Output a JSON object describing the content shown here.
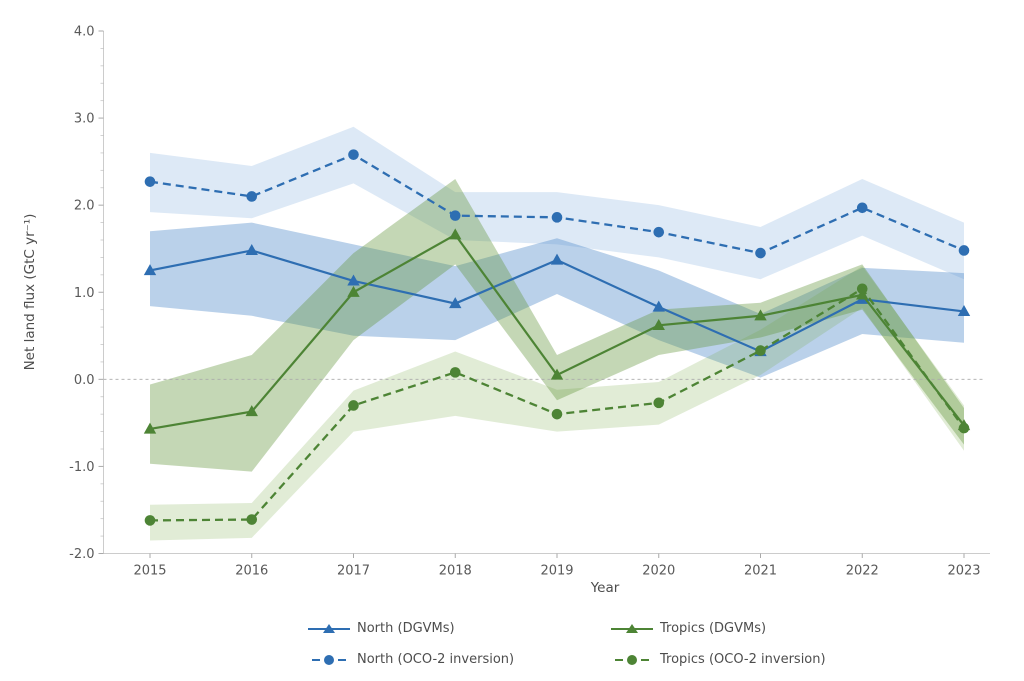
{
  "figure": {
    "background": "#ffffff"
  },
  "chart_data": {
    "type": "line",
    "title": "",
    "xlabel": "Year",
    "ylabel": "Net land flux (GtC yr⁻¹)",
    "x": [
      2015,
      2016,
      2017,
      2018,
      2019,
      2020,
      2021,
      2022,
      2023
    ],
    "xtick_labels": [
      "2015",
      "2016",
      "2017",
      "2018",
      "2019",
      "2020",
      "2021",
      "2022",
      "2023"
    ],
    "ylim": [
      -2.0,
      4.0
    ],
    "ytick_values": [
      4.0,
      3.0,
      2.0,
      1.0,
      0.0,
      -1.0,
      -2.0
    ],
    "ytick_labels": [
      "4.0",
      "3.0",
      "2.0",
      "1.0",
      "0.0",
      "-1.0",
      "-2.0"
    ],
    "y_minor_tick_step": 0.2,
    "grid": false,
    "zero_line": true,
    "legend_position": "bottom",
    "colors": {
      "axis": "#cccccc",
      "tick": "#a9a9a9",
      "tick_label": "#595959",
      "axis_label": "#4d4d4d",
      "zero_line": "#aaaaaa",
      "legend_text": "#4d4d4d",
      "north": "#2e6eb2",
      "tropics": "#4d8435"
    },
    "series": [
      {
        "name": "North (DGVMs)",
        "color": "#2e6eb2",
        "line_style": "solid",
        "marker": "triangle",
        "values": [
          1.25,
          1.48,
          1.13,
          0.87,
          1.37,
          0.83,
          0.32,
          0.92,
          0.78
        ],
        "band": {
          "upper": [
            1.7,
            1.8,
            1.55,
            1.3,
            1.62,
            1.25,
            0.75,
            1.28,
            1.22
          ],
          "lower": [
            0.84,
            0.73,
            0.5,
            0.45,
            0.98,
            0.45,
            0.02,
            0.52,
            0.42
          ],
          "color": "rgba(90,145,205,0.42)"
        }
      },
      {
        "name": "North (OCO-2 inversion)",
        "color": "#2e6eb2",
        "line_style": "dashed",
        "marker": "circle",
        "values": [
          2.27,
          2.1,
          2.58,
          1.88,
          1.86,
          1.69,
          1.45,
          1.97,
          1.48
        ],
        "band": {
          "upper": [
            2.6,
            2.45,
            2.9,
            2.15,
            2.15,
            2.0,
            1.75,
            2.3,
            1.8
          ],
          "lower": [
            1.92,
            1.85,
            2.25,
            1.6,
            1.55,
            1.4,
            1.15,
            1.65,
            1.15
          ],
          "color": "rgba(100,155,215,0.22)"
        }
      },
      {
        "name": "Tropics (DGVMs)",
        "color": "#4d8435",
        "line_style": "solid",
        "marker": "triangle",
        "values": [
          -0.57,
          -0.37,
          1.0,
          1.66,
          0.05,
          0.62,
          0.73,
          0.97,
          -0.53
        ],
        "band": {
          "upper": [
            -0.06,
            0.28,
            1.45,
            2.3,
            0.28,
            0.8,
            0.88,
            1.32,
            -0.33
          ],
          "lower": [
            -0.97,
            -1.06,
            0.45,
            1.32,
            -0.24,
            0.28,
            0.48,
            0.8,
            -0.75
          ],
          "color": "rgba(100,150,60,0.38)"
        }
      },
      {
        "name": "Tropics (OCO-2 inversion)",
        "color": "#4d8435",
        "line_style": "dashed",
        "marker": "circle",
        "values": [
          -1.62,
          -1.61,
          -0.3,
          0.08,
          -0.4,
          -0.27,
          0.33,
          1.04,
          -0.56
        ],
        "band": {
          "upper": [
            -1.44,
            -1.42,
            -0.13,
            0.32,
            -0.12,
            -0.03,
            0.57,
            1.3,
            -0.3
          ],
          "lower": [
            -1.85,
            -1.82,
            -0.6,
            -0.42,
            -0.6,
            -0.52,
            0.05,
            0.82,
            -0.82
          ],
          "color": "rgba(120,170,70,0.22)"
        }
      }
    ]
  }
}
